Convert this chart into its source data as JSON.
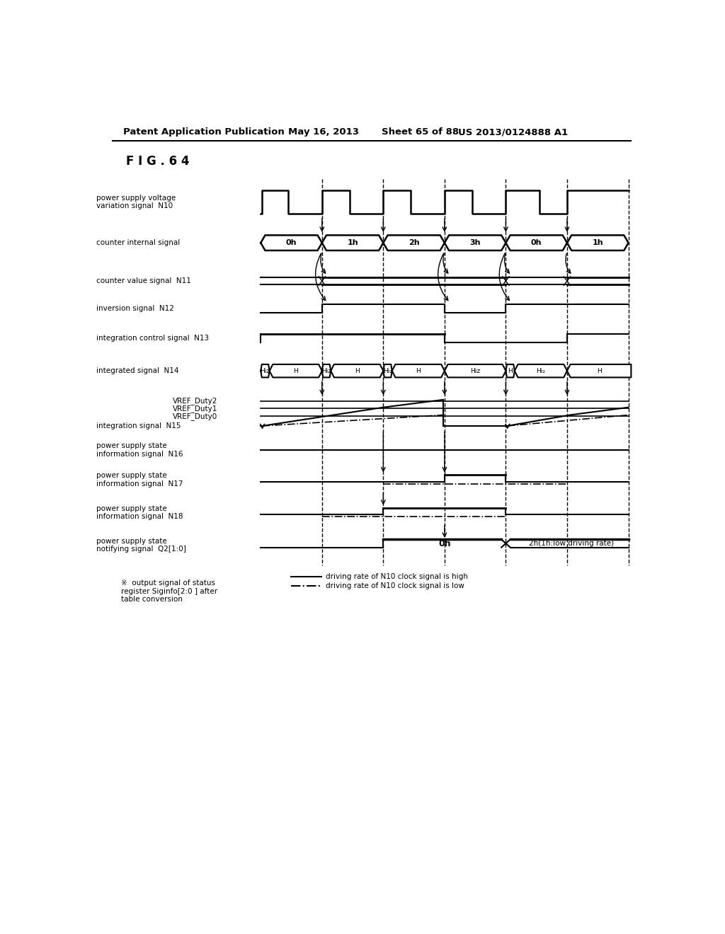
{
  "title_header": "Patent Application Publication",
  "date_header": "May 16, 2013",
  "sheet_header": "Sheet 65 of 88",
  "patent_header": "US 2013/0124888 A1",
  "fig_label": "F I G . 6 4",
  "bg_color": "#ffffff",
  "text_color": "#000000",
  "counter_labels": [
    "0h",
    "1h",
    "2h",
    "3h",
    "0h",
    "1h"
  ],
  "legend_note": "※  output signal of status\nregister Siginfo[2:0 ] after\ntable conversion",
  "legend_solid": "driving rate of N10 clock signal is high",
  "legend_dash": "driving rate of N10 clock signal is low"
}
